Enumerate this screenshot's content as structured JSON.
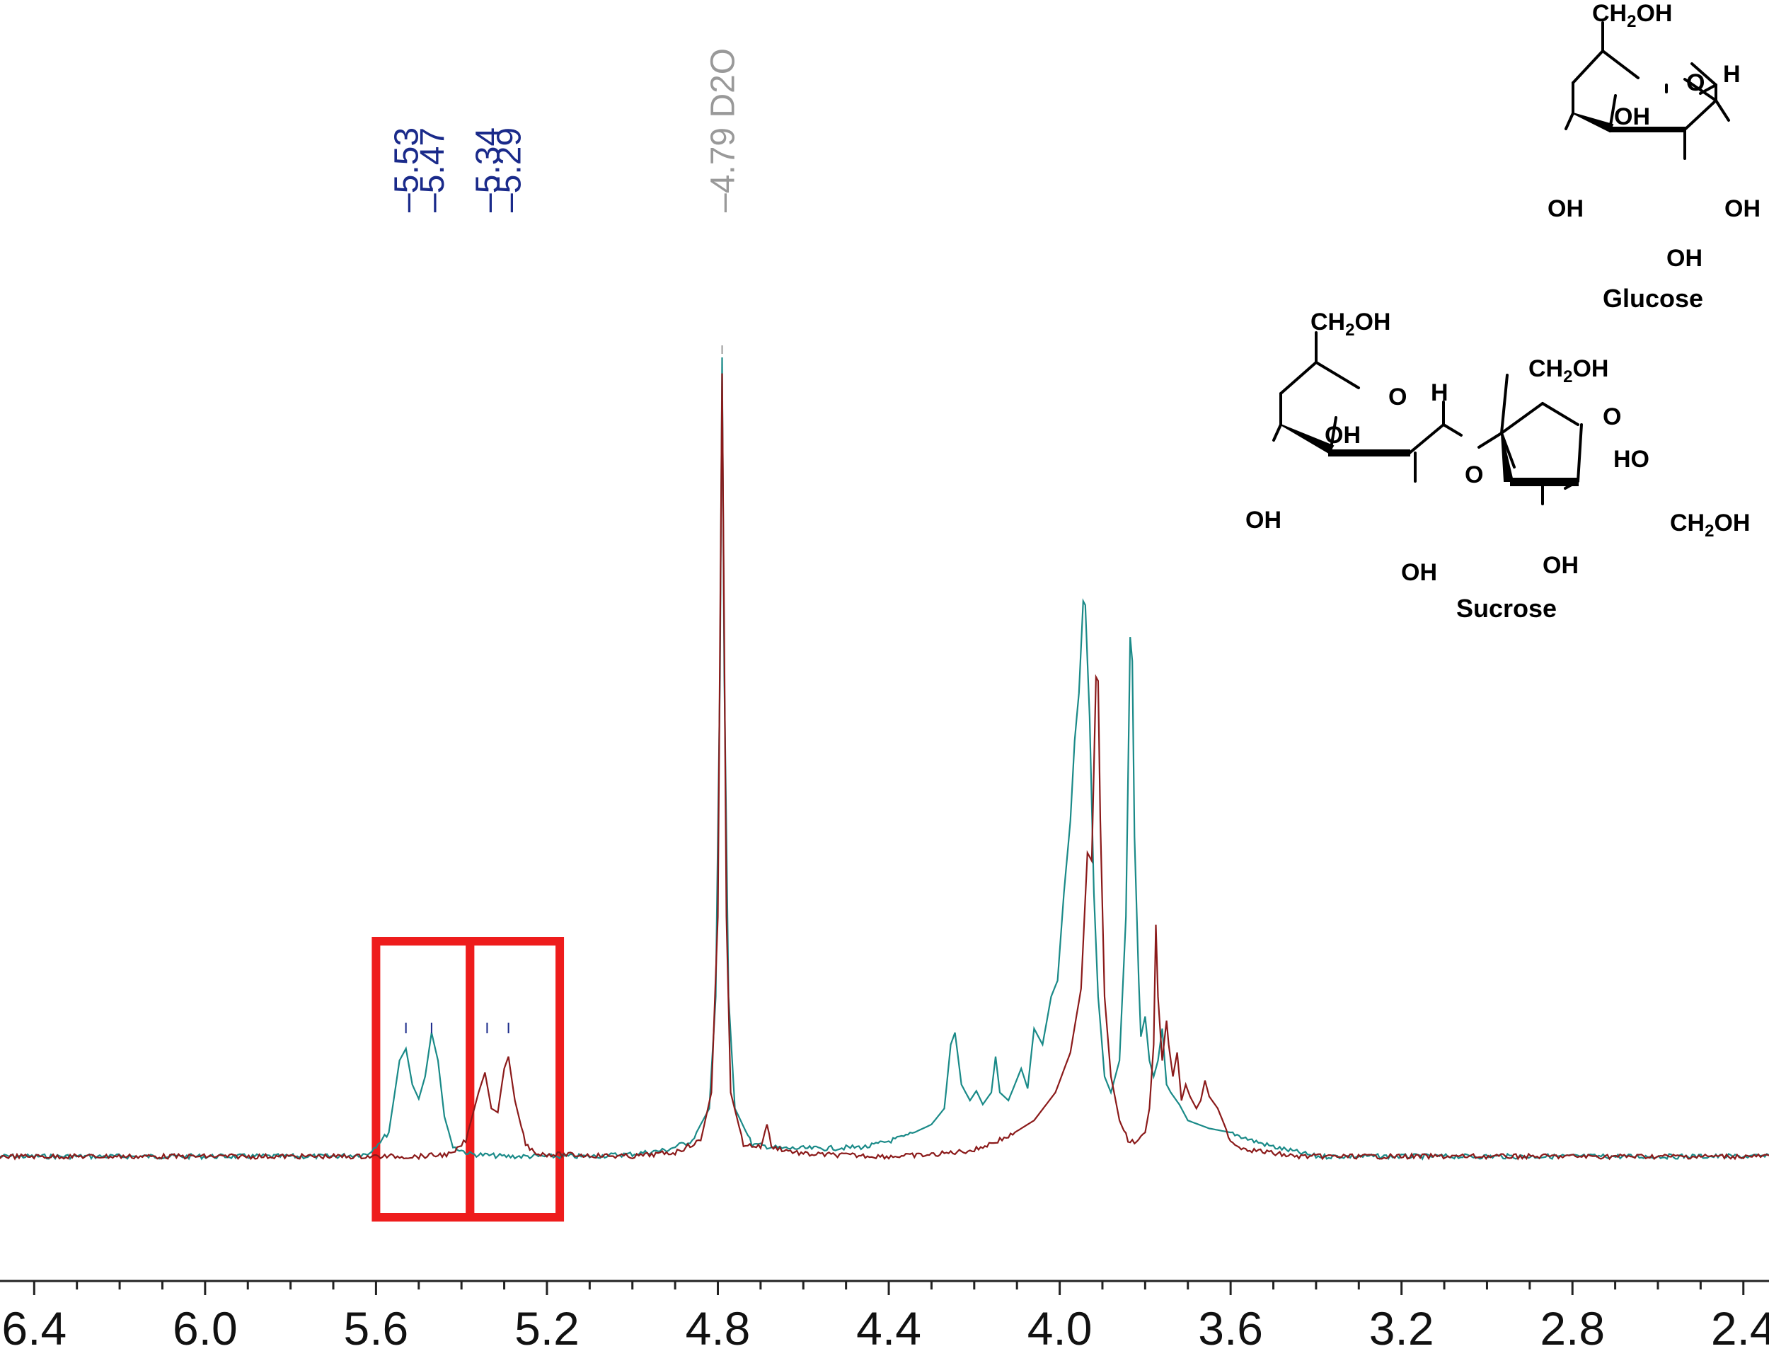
{
  "chart_data": {
    "type": "line",
    "title": "",
    "xlabel": "",
    "ylabel": "",
    "x_axis": {
      "reversed": true,
      "range_ppm": [
        6.48,
        2.34
      ],
      "ticks": [
        6.4,
        6.0,
        5.6,
        5.2,
        4.8,
        4.4,
        4.0,
        3.6,
        3.2,
        2.8,
        2.4
      ],
      "tick_labels": [
        "6.4",
        "6.0",
        "5.6",
        "5.2",
        "4.8",
        "4.4",
        "4.0",
        "3.6",
        "3.2",
        "2.8",
        "2.4"
      ],
      "minor_step": 0.1
    },
    "y_range": [
      -0.02,
      1.02
    ],
    "grid": false,
    "legend": "none",
    "series": [
      {
        "color": "#1a8a88",
        "baseline": 0.0,
        "points": [
          [
            6.48,
            0.0
          ],
          [
            5.7,
            0.0
          ],
          [
            5.62,
            0.003
          ],
          [
            5.57,
            0.03
          ],
          [
            5.545,
            0.12
          ],
          [
            5.53,
            0.135
          ],
          [
            5.515,
            0.09
          ],
          [
            5.5,
            0.072
          ],
          [
            5.485,
            0.1
          ],
          [
            5.47,
            0.155
          ],
          [
            5.455,
            0.12
          ],
          [
            5.44,
            0.05
          ],
          [
            5.42,
            0.012
          ],
          [
            5.38,
            0.003
          ],
          [
            5.3,
            0.0
          ],
          [
            5.1,
            0.0
          ],
          [
            5.0,
            0.003
          ],
          [
            4.92,
            0.008
          ],
          [
            4.86,
            0.02
          ],
          [
            4.82,
            0.06
          ],
          [
            4.805,
            0.2
          ],
          [
            4.795,
            0.6
          ],
          [
            4.79,
            1.0
          ],
          [
            4.785,
            0.6
          ],
          [
            4.775,
            0.2
          ],
          [
            4.76,
            0.06
          ],
          [
            4.72,
            0.015
          ],
          [
            4.65,
            0.01
          ],
          [
            4.55,
            0.01
          ],
          [
            4.45,
            0.012
          ],
          [
            4.36,
            0.025
          ],
          [
            4.3,
            0.04
          ],
          [
            4.27,
            0.06
          ],
          [
            4.255,
            0.14
          ],
          [
            4.245,
            0.155
          ],
          [
            4.23,
            0.09
          ],
          [
            4.21,
            0.07
          ],
          [
            4.195,
            0.082
          ],
          [
            4.18,
            0.065
          ],
          [
            4.16,
            0.08
          ],
          [
            4.15,
            0.125
          ],
          [
            4.14,
            0.08
          ],
          [
            4.12,
            0.07
          ],
          [
            4.09,
            0.11
          ],
          [
            4.075,
            0.085
          ],
          [
            4.06,
            0.16
          ],
          [
            4.04,
            0.14
          ],
          [
            4.02,
            0.2
          ],
          [
            4.005,
            0.22
          ],
          [
            3.99,
            0.33
          ],
          [
            3.975,
            0.42
          ],
          [
            3.965,
            0.52
          ],
          [
            3.955,
            0.58
          ],
          [
            3.945,
            0.695
          ],
          [
            3.94,
            0.69
          ],
          [
            3.93,
            0.55
          ],
          [
            3.92,
            0.33
          ],
          [
            3.91,
            0.2
          ],
          [
            3.895,
            0.1
          ],
          [
            3.88,
            0.08
          ],
          [
            3.86,
            0.12
          ],
          [
            3.845,
            0.3
          ],
          [
            3.835,
            0.65
          ],
          [
            3.83,
            0.62
          ],
          [
            3.825,
            0.4
          ],
          [
            3.815,
            0.22
          ],
          [
            3.81,
            0.15
          ],
          [
            3.8,
            0.175
          ],
          [
            3.79,
            0.12
          ],
          [
            3.78,
            0.1
          ],
          [
            3.77,
            0.12
          ],
          [
            3.76,
            0.16
          ],
          [
            3.75,
            0.09
          ],
          [
            3.74,
            0.08
          ],
          [
            3.72,
            0.065
          ],
          [
            3.7,
            0.045
          ],
          [
            3.65,
            0.035
          ],
          [
            3.6,
            0.03
          ],
          [
            3.55,
            0.02
          ],
          [
            3.5,
            0.012
          ],
          [
            3.45,
            0.006
          ],
          [
            3.4,
            0.0
          ],
          [
            2.34,
            0.0
          ]
        ]
      },
      {
        "color": "#8b1a1a",
        "baseline": 0.0,
        "points": [
          [
            6.48,
            0.0
          ],
          [
            5.5,
            0.0
          ],
          [
            5.42,
            0.003
          ],
          [
            5.39,
            0.02
          ],
          [
            5.36,
            0.08
          ],
          [
            5.345,
            0.105
          ],
          [
            5.33,
            0.06
          ],
          [
            5.315,
            0.055
          ],
          [
            5.3,
            0.11
          ],
          [
            5.29,
            0.125
          ],
          [
            5.275,
            0.07
          ],
          [
            5.25,
            0.015
          ],
          [
            5.22,
            0.003
          ],
          [
            5.0,
            0.0
          ],
          [
            4.9,
            0.005
          ],
          [
            4.84,
            0.02
          ],
          [
            4.815,
            0.08
          ],
          [
            4.8,
            0.3
          ],
          [
            4.79,
            0.98
          ],
          [
            4.78,
            0.3
          ],
          [
            4.77,
            0.08
          ],
          [
            4.74,
            0.015
          ],
          [
            4.7,
            0.012
          ],
          [
            4.685,
            0.04
          ],
          [
            4.675,
            0.012
          ],
          [
            4.6,
            0.003
          ],
          [
            4.4,
            0.0
          ],
          [
            4.3,
            0.002
          ],
          [
            4.2,
            0.008
          ],
          [
            4.12,
            0.025
          ],
          [
            4.06,
            0.045
          ],
          [
            4.01,
            0.08
          ],
          [
            3.975,
            0.13
          ],
          [
            3.95,
            0.21
          ],
          [
            3.935,
            0.38
          ],
          [
            3.925,
            0.37
          ],
          [
            3.915,
            0.6
          ],
          [
            3.91,
            0.595
          ],
          [
            3.905,
            0.42
          ],
          [
            3.895,
            0.2
          ],
          [
            3.88,
            0.1
          ],
          [
            3.86,
            0.045
          ],
          [
            3.84,
            0.02
          ],
          [
            3.82,
            0.016
          ],
          [
            3.8,
            0.03
          ],
          [
            3.79,
            0.06
          ],
          [
            3.78,
            0.14
          ],
          [
            3.775,
            0.29
          ],
          [
            3.77,
            0.2
          ],
          [
            3.76,
            0.12
          ],
          [
            3.75,
            0.17
          ],
          [
            3.745,
            0.14
          ],
          [
            3.735,
            0.1
          ],
          [
            3.725,
            0.13
          ],
          [
            3.715,
            0.07
          ],
          [
            3.705,
            0.09
          ],
          [
            3.695,
            0.075
          ],
          [
            3.68,
            0.06
          ],
          [
            3.67,
            0.07
          ],
          [
            3.66,
            0.095
          ],
          [
            3.65,
            0.075
          ],
          [
            3.63,
            0.06
          ],
          [
            3.615,
            0.04
          ],
          [
            3.6,
            0.02
          ],
          [
            3.58,
            0.012
          ],
          [
            3.55,
            0.008
          ],
          [
            3.5,
            0.004
          ],
          [
            3.45,
            0.0
          ],
          [
            2.34,
            0.0
          ]
        ]
      }
    ],
    "peak_labels": [
      {
        "ppm": 5.53,
        "text": "5.53",
        "color": "#1a2a8a"
      },
      {
        "ppm": 5.47,
        "text": "5.47",
        "color": "#1a2a8a"
      },
      {
        "ppm": 5.34,
        "text": "5.34",
        "color": "#1a2a8a"
      },
      {
        "ppm": 5.29,
        "text": "5.29",
        "color": "#1a2a8a"
      },
      {
        "ppm": 4.79,
        "text": "4.79 D2O",
        "color": "#999999"
      }
    ],
    "highlight_boxes": [
      {
        "from_ppm": 5.6,
        "to_ppm": 5.38,
        "color": "#ee1c1c"
      },
      {
        "from_ppm": 5.38,
        "to_ppm": 5.17,
        "color": "#ee1c1c"
      }
    ]
  },
  "structures": {
    "glucose": {
      "name": "Glucose",
      "ring_oxygen": "O",
      "substituents": [
        "CH2OH",
        "OH",
        "OH",
        "OH",
        "OH"
      ],
      "highlight_h": "H",
      "highlight_color": "#ee2200"
    },
    "sucrose": {
      "name": "Sucrose",
      "ring_oxygens": [
        "O",
        "O"
      ],
      "bridge_oxygen": "O",
      "substituents": [
        "CH2OH",
        "OH",
        "OH",
        "OH",
        "CH2OH",
        "HO",
        "OH",
        "CH2OH"
      ],
      "highlight_h": "H",
      "highlight_color": "#ee2200"
    }
  }
}
